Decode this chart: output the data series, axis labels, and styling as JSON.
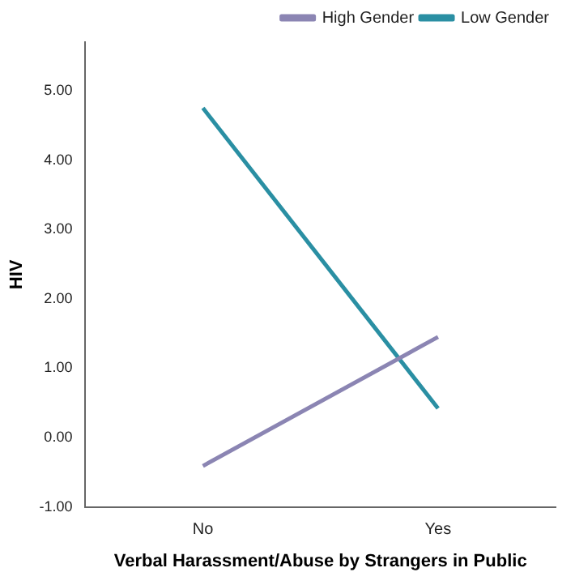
{
  "chart_data": {
    "type": "line",
    "xlabel": "Verbal Harassment/Abuse by Strangers in Public",
    "ylabel": "HIV",
    "categories": [
      "No",
      "Yes"
    ],
    "series": [
      {
        "name": "High Gender",
        "color": "#8b85b3",
        "values": [
          -0.41,
          1.45
        ]
      },
      {
        "name": "Low Gender",
        "color": "#2a8fa3",
        "values": [
          4.75,
          0.42
        ]
      }
    ],
    "ylim": [
      -1,
      5.7
    ],
    "yticks": [
      {
        "value": -1,
        "label": "-1.00"
      },
      {
        "value": 0,
        "label": "0.00"
      },
      {
        "value": 1,
        "label": "1.00"
      },
      {
        "value": 2,
        "label": "2.00"
      },
      {
        "value": 3,
        "label": "3.00"
      },
      {
        "value": 4,
        "label": "4.00"
      },
      {
        "value": 5,
        "label": "5.00"
      }
    ],
    "legend": "top right",
    "grid": false,
    "marker": "none"
  }
}
